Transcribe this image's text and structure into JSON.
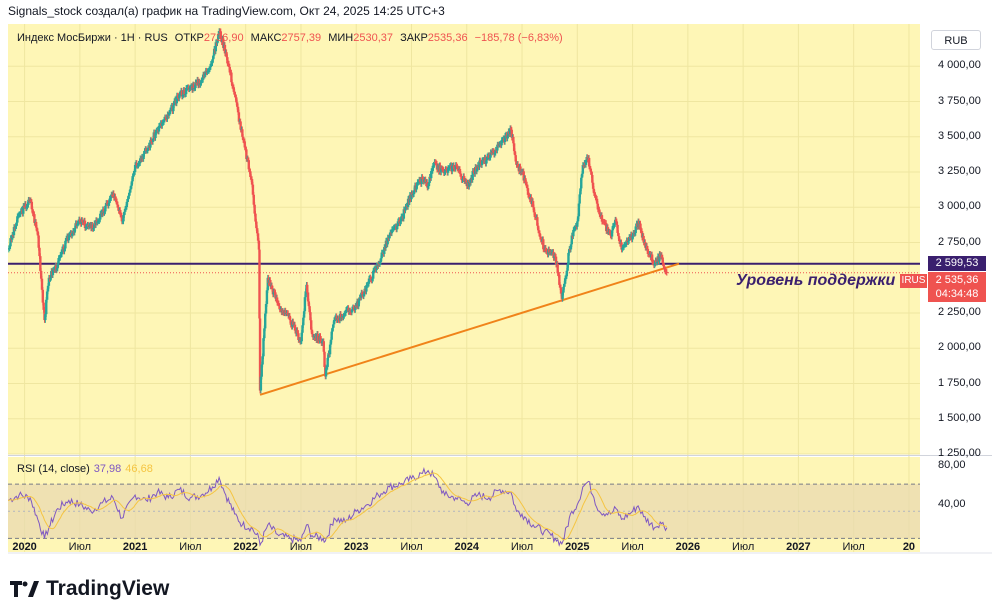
{
  "caption": "Signals_stock создал(а) график на TradingView.com, Окт 24, 2025 14:25 UTC+3",
  "legend": {
    "symbol": "Индекс МосБиржи · 1H · RUS",
    "open_label": "ОТКР",
    "open_value": "2736,90",
    "high_label": "МАКС",
    "high_value": "2757,39",
    "low_label": "МИН",
    "low_value": "2530,37",
    "close_label": "ЗАКР",
    "close_value": "2535,36",
    "change": "−185,78 (−6,83%)"
  },
  "currency": "RUB",
  "price_badges": {
    "support_value": "2 599,53",
    "last_value": "2 535,36",
    "countdown": "04:34:48",
    "symbol_tag": "IRUS"
  },
  "annotation": "Уровень поддержки",
  "rsi": {
    "label": "RSI (14, close)",
    "value": "37,98",
    "ma_value": "46,68",
    "axis_labels": [
      "80,00",
      "40,00"
    ]
  },
  "logo": {
    "text": "TradingView"
  },
  "chart_data": {
    "type": "line",
    "title": "Индекс МосБиржи · 1H · RUS",
    "ylabel": "RUB",
    "ylim": [
      1250,
      4300
    ],
    "y_ticks": [
      {
        "value": 4000,
        "label": "4 000,00"
      },
      {
        "value": 3750,
        "label": "3 750,00"
      },
      {
        "value": 3500,
        "label": "3 500,00"
      },
      {
        "value": 3250,
        "label": "3 250,00"
      },
      {
        "value": 3000,
        "label": "3 000,00"
      },
      {
        "value": 2750,
        "label": "2 750,00"
      },
      {
        "value": 2250,
        "label": "2 250,00"
      },
      {
        "value": 2000,
        "label": "2 000,00"
      },
      {
        "value": 1750,
        "label": "1 750,00"
      },
      {
        "value": 1500,
        "label": "1 500,00"
      },
      {
        "value": 1250,
        "label": "1 250,00"
      }
    ],
    "x_range": [
      2019.85,
      2028.1
    ],
    "x_ticks": [
      {
        "t": 2020.0,
        "label": "2020",
        "year": true
      },
      {
        "t": 2020.5,
        "label": "Июл",
        "year": false
      },
      {
        "t": 2021.0,
        "label": "2021",
        "year": true
      },
      {
        "t": 2021.5,
        "label": "Июл",
        "year": false
      },
      {
        "t": 2022.0,
        "label": "2022",
        "year": true
      },
      {
        "t": 2022.5,
        "label": "Июл",
        "year": false
      },
      {
        "t": 2023.0,
        "label": "2023",
        "year": true
      },
      {
        "t": 2023.5,
        "label": "Июл",
        "year": false
      },
      {
        "t": 2024.0,
        "label": "2024",
        "year": true
      },
      {
        "t": 2024.5,
        "label": "Июл",
        "year": false
      },
      {
        "t": 2025.0,
        "label": "2025",
        "year": true
      },
      {
        "t": 2025.5,
        "label": "Июл",
        "year": false
      },
      {
        "t": 2026.0,
        "label": "2026",
        "year": true
      },
      {
        "t": 2026.5,
        "label": "Июл",
        "year": false
      },
      {
        "t": 2027.0,
        "label": "2027",
        "year": true
      },
      {
        "t": 2027.5,
        "label": "Июл",
        "year": false
      },
      {
        "t": 2028.0,
        "label": "20",
        "year": true
      }
    ],
    "series": [
      {
        "name": "Индекс МосБиржи",
        "t": [
          2019.85,
          2019.95,
          2020.05,
          2020.12,
          2020.18,
          2020.22,
          2020.3,
          2020.4,
          2020.5,
          2020.6,
          2020.7,
          2020.8,
          2020.88,
          2021.0,
          2021.1,
          2021.2,
          2021.3,
          2021.4,
          2021.5,
          2021.6,
          2021.7,
          2021.76,
          2021.82,
          2021.9,
          2021.97,
          2022.05,
          2022.12,
          2022.13,
          2022.2,
          2022.3,
          2022.4,
          2022.5,
          2022.55,
          2022.6,
          2022.7,
          2022.72,
          2022.8,
          2022.9,
          2023.0,
          2023.1,
          2023.2,
          2023.3,
          2023.4,
          2023.5,
          2023.6,
          2023.65,
          2023.7,
          2023.8,
          2023.9,
          2024.0,
          2024.1,
          2024.2,
          2024.3,
          2024.4,
          2024.45,
          2024.5,
          2024.6,
          2024.7,
          2024.8,
          2024.86,
          2024.95,
          2025.0,
          2025.05,
          2025.1,
          2025.15,
          2025.2,
          2025.3,
          2025.35,
          2025.4,
          2025.5,
          2025.55,
          2025.6,
          2025.7,
          2025.75,
          2025.81
        ],
        "values": [
          2700,
          2950,
          3050,
          2800,
          2200,
          2500,
          2600,
          2800,
          2900,
          2850,
          2950,
          3100,
          2900,
          3300,
          3400,
          3550,
          3650,
          3800,
          3850,
          3900,
          4050,
          4250,
          4100,
          3800,
          3500,
          3200,
          2700,
          1700,
          2500,
          2300,
          2200,
          2050,
          2450,
          2100,
          2050,
          1800,
          2200,
          2250,
          2300,
          2450,
          2600,
          2800,
          2900,
          3100,
          3200,
          3150,
          3300,
          3250,
          3300,
          3150,
          3300,
          3350,
          3450,
          3550,
          3300,
          3250,
          3000,
          2700,
          2650,
          2350,
          2800,
          2900,
          3300,
          3350,
          3100,
          2950,
          2800,
          2900,
          2700,
          2800,
          2900,
          2750,
          2600,
          2650,
          2535
        ]
      }
    ],
    "support_level": {
      "value": 2599.53,
      "label": "Уровень поддержки"
    },
    "trendline": {
      "t_start": 2022.13,
      "v_start": 1670,
      "t_end": 2025.92,
      "v_end": 2600
    },
    "last_price": 2535.36,
    "rsi_series": {
      "name": "RSI (14, close)",
      "ylim": [
        20,
        90
      ],
      "band": [
        70,
        30
      ],
      "t": [
        2019.85,
        2019.95,
        2020.05,
        2020.12,
        2020.18,
        2020.22,
        2020.3,
        2020.4,
        2020.5,
        2020.6,
        2020.7,
        2020.8,
        2020.88,
        2021.0,
        2021.1,
        2021.2,
        2021.3,
        2021.4,
        2021.5,
        2021.6,
        2021.7,
        2021.76,
        2021.82,
        2021.9,
        2021.97,
        2022.05,
        2022.12,
        2022.13,
        2022.2,
        2022.3,
        2022.4,
        2022.5,
        2022.55,
        2022.6,
        2022.7,
        2022.72,
        2022.8,
        2022.9,
        2023.0,
        2023.1,
        2023.2,
        2023.3,
        2023.4,
        2023.5,
        2023.6,
        2023.65,
        2023.7,
        2023.8,
        2023.9,
        2024.0,
        2024.1,
        2024.2,
        2024.3,
        2024.4,
        2024.45,
        2024.5,
        2024.6,
        2024.7,
        2024.8,
        2024.86,
        2024.95,
        2025.0,
        2025.05,
        2025.1,
        2025.15,
        2025.2,
        2025.3,
        2025.35,
        2025.4,
        2025.5,
        2025.55,
        2025.6,
        2025.7,
        2025.75,
        2025.81
      ],
      "values": [
        58,
        62,
        60,
        44,
        30,
        38,
        52,
        58,
        55,
        50,
        56,
        60,
        45,
        62,
        58,
        64,
        60,
        66,
        60,
        62,
        68,
        75,
        62,
        48,
        40,
        38,
        30,
        25,
        40,
        32,
        30,
        28,
        40,
        32,
        30,
        28,
        45,
        42,
        50,
        55,
        62,
        68,
        70,
        74,
        78,
        80,
        76,
        62,
        60,
        56,
        62,
        60,
        66,
        64,
        50,
        48,
        40,
        35,
        30,
        26,
        50,
        55,
        68,
        72,
        60,
        50,
        48,
        52,
        44,
        50,
        54,
        46,
        38,
        42,
        38
      ]
    }
  }
}
